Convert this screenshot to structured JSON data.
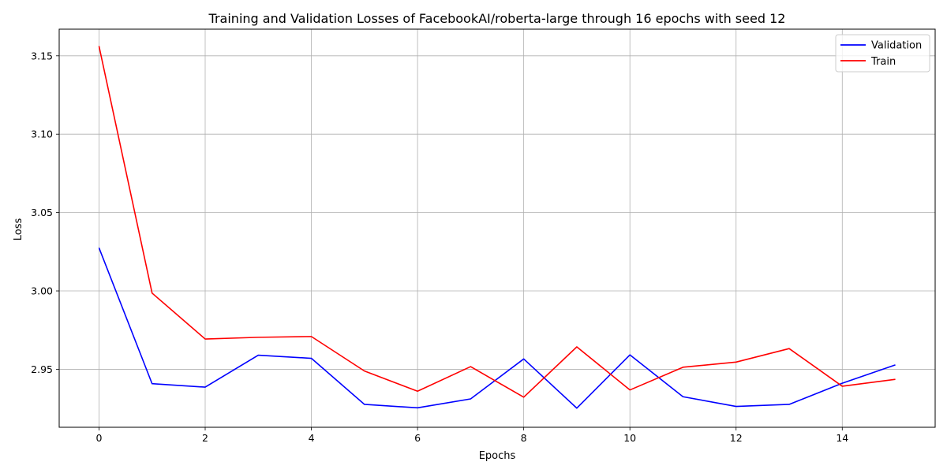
{
  "chart_data": {
    "type": "line",
    "title": "Training and Validation Losses of FacebookAI/roberta-large through 16 epochs with seed 12",
    "xlabel": "Epochs",
    "ylabel": "Loss",
    "x": [
      0,
      1,
      2,
      3,
      4,
      5,
      6,
      7,
      8,
      9,
      10,
      11,
      12,
      13,
      14,
      15
    ],
    "xlim": [
      -0.75,
      15.75
    ],
    "ylim": [
      2.913,
      3.167
    ],
    "xticks": [
      0,
      2,
      4,
      6,
      8,
      10,
      12,
      14
    ],
    "yticks": [
      2.95,
      3.0,
      3.05,
      3.1,
      3.15
    ],
    "xtick_labels": [
      "0",
      "2",
      "4",
      "6",
      "8",
      "10",
      "12",
      "14"
    ],
    "ytick_labels": [
      "2.95",
      "3.00",
      "3.05",
      "3.10",
      "3.15"
    ],
    "grid": true,
    "legend_position": "top-right",
    "series": [
      {
        "name": "Validation",
        "color": "#0000ff",
        "values": [
          3.0275,
          2.9408,
          2.9386,
          2.959,
          2.957,
          2.9276,
          2.9254,
          2.9311,
          2.9566,
          2.9252,
          2.9592,
          2.9325,
          2.9263,
          2.9276,
          2.9411,
          2.9528
        ]
      },
      {
        "name": "Train",
        "color": "#ff0000",
        "values": [
          3.1562,
          2.9986,
          2.9693,
          2.9704,
          2.9709,
          2.9489,
          2.936,
          2.9517,
          2.9322,
          2.9643,
          2.9368,
          2.9513,
          2.9546,
          2.9632,
          2.9392,
          2.9436
        ]
      }
    ]
  }
}
